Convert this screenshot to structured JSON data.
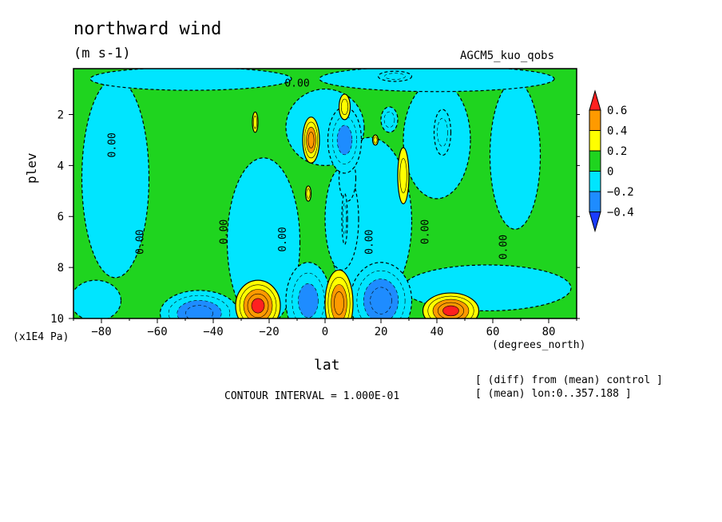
{
  "figure": {
    "title": "northward wind",
    "units": "(m s-1)",
    "run_label": "AGCM5_kuo_qobs",
    "contour_interval": "CONTOUR INTERVAL = 1.000E-01",
    "note_line1": "[ (diff) from (mean) control ]",
    "note_line2": "[ (mean) lon:0..357.188 ]"
  },
  "chart_data": {
    "type": "heatmap",
    "title": "northward wind",
    "xlabel": "lat",
    "x_units": "(degrees_north)",
    "ylabel": "plev",
    "y_units": "(x1E4 Pa)",
    "xlim": [
      -90,
      90
    ],
    "ylim": [
      10,
      0.2
    ],
    "x_ticks": [
      -80,
      -60,
      -40,
      -20,
      0,
      20,
      40,
      60,
      80
    ],
    "y_ticks": [
      2,
      4,
      6,
      8,
      10
    ],
    "colorbar": {
      "levels": [
        0.6,
        0.4,
        0.2,
        0,
        -0.2,
        -0.4
      ],
      "labels": [
        "0.6",
        "0.4",
        "0.2",
        "0",
        "-0.2",
        "-0.4"
      ],
      "colors": [
        "#ff2020",
        "#ff9a00",
        "#ffff00",
        "#1fd41f",
        "#00e5ff",
        "#1e8cff",
        "#1a3cff"
      ]
    },
    "contour_labels": [
      {
        "text": "0.00",
        "x": -76,
        "y": 3.2
      },
      {
        "text": "0.00",
        "x": -66,
        "y": 7.0
      },
      {
        "text": "0.00",
        "x": -36,
        "y": 6.6
      },
      {
        "text": "0.00",
        "x": -15,
        "y": 6.9
      },
      {
        "text": "0.00",
        "x": -10,
        "y": 0.8
      },
      {
        "text": "0.00",
        "x": 16,
        "y": 7.0
      },
      {
        "text": "0.00",
        "x": 36,
        "y": 6.6
      },
      {
        "text": "0.00",
        "x": 64,
        "y": 7.2
      }
    ],
    "blobs": [
      {
        "x": -75,
        "y": 4.5,
        "rx": 12,
        "ry": 3.9,
        "value": -0.1
      },
      {
        "x": 68,
        "y": 3.6,
        "rx": 9,
        "ry": 2.9,
        "value": -0.1
      },
      {
        "x": 40,
        "y": 3.0,
        "rx": 12,
        "ry": 2.3,
        "value": -0.1
      },
      {
        "x": -22,
        "y": 7.0,
        "rx": 13,
        "ry": 3.3,
        "value": -0.1
      },
      {
        "x": 16,
        "y": 6.2,
        "rx": 15,
        "ry": 3.3,
        "value": -0.1
      },
      {
        "x": 58,
        "y": 8.8,
        "rx": 30,
        "ry": 0.9,
        "value": -0.1
      },
      {
        "x": -82,
        "y": 9.3,
        "rx": 9,
        "ry": 0.8,
        "value": -0.1
      },
      {
        "x": 40,
        "y": 0.6,
        "rx": 42,
        "ry": 0.5,
        "value": -0.1
      },
      {
        "x": -48,
        "y": 0.6,
        "rx": 36,
        "ry": 0.45,
        "value": -0.1
      },
      {
        "x": 6,
        "y": 6.1,
        "rx": 6,
        "ry": 2.0,
        "value": -0.1
      },
      {
        "x": 0,
        "y": 2.5,
        "rx": 14,
        "ry": 1.5,
        "value": -0.1
      },
      {
        "x": 8,
        "y": 4.5,
        "rx": 3,
        "ry": 0.9,
        "value": -0.1
      },
      {
        "x": -45,
        "y": 9.8,
        "rx": 14,
        "ry": 0.9,
        "value": -0.4
      },
      {
        "x": -6,
        "y": 9.3,
        "rx": 8,
        "ry": 1.5,
        "value": -0.3
      },
      {
        "x": 20,
        "y": 9.3,
        "rx": 11,
        "ry": 1.5,
        "value": -0.4
      },
      {
        "x": 7,
        "y": 3.0,
        "rx": 6,
        "ry": 1.3,
        "value": -0.3
      },
      {
        "x": 23,
        "y": 2.2,
        "rx": 3,
        "ry": 0.5,
        "value": -0.2
      },
      {
        "x": 42,
        "y": 2.7,
        "rx": 3,
        "ry": 0.9,
        "value": -0.2
      },
      {
        "x": 7,
        "y": 6.1,
        "rx": 1,
        "ry": 1.0,
        "value": -0.2
      },
      {
        "x": 25,
        "y": 0.5,
        "rx": 6,
        "ry": 0.2,
        "value": -0.2
      },
      {
        "x": -24,
        "y": 9.5,
        "rx": 8,
        "ry": 1.0,
        "value": 0.5
      },
      {
        "x": 5,
        "y": 9.4,
        "rx": 5,
        "ry": 1.3,
        "value": 0.4
      },
      {
        "x": 45,
        "y": 9.7,
        "rx": 10,
        "ry": 0.7,
        "value": 0.5
      },
      {
        "x": -5,
        "y": 3.0,
        "rx": 3,
        "ry": 0.9,
        "value": 0.4
      },
      {
        "x": 7,
        "y": 1.7,
        "rx": 2,
        "ry": 0.5,
        "value": 0.2
      },
      {
        "x": 28,
        "y": 4.4,
        "rx": 2,
        "ry": 1.1,
        "value": 0.2
      },
      {
        "x": -25,
        "y": 2.3,
        "rx": 1,
        "ry": 0.4,
        "value": 0.2
      },
      {
        "x": -6,
        "y": 5.1,
        "rx": 1,
        "ry": 0.3,
        "value": 0.2
      },
      {
        "x": 18,
        "y": 3.0,
        "rx": 1,
        "ry": 0.2,
        "value": 0.2
      }
    ]
  }
}
